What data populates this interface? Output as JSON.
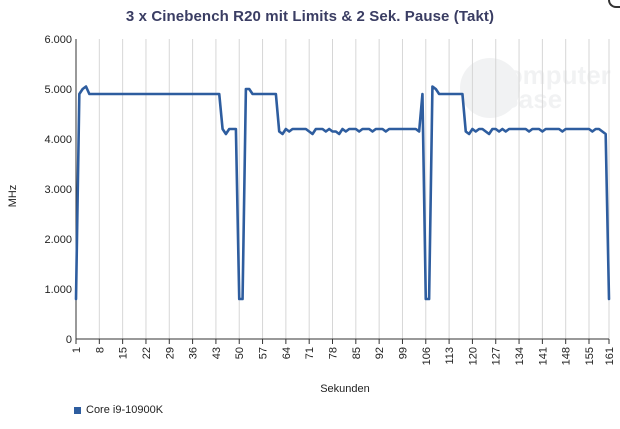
{
  "title": "3 x Cinebench R20 mit Limits & 2 Sek. Pause (Takt)",
  "watermark": {
    "line1": "Computer",
    "line2": "Base"
  },
  "chart_data": {
    "type": "line",
    "title": "3 x Cinebench R20 mit Limits & 2 Sek. Pause (Takt)",
    "xlabel": "Sekunden",
    "ylabel": "MHz",
    "xlim": [
      1,
      161
    ],
    "ylim": [
      0,
      6000
    ],
    "x_tick_labels": [
      "1",
      "8",
      "15",
      "22",
      "29",
      "36",
      "43",
      "50",
      "57",
      "64",
      "71",
      "78",
      "85",
      "92",
      "99",
      "106",
      "113",
      "120",
      "127",
      "134",
      "141",
      "148",
      "155",
      "161"
    ],
    "y_tick_labels": [
      "0",
      "1.000",
      "2.000",
      "3.000",
      "4.000",
      "5.000",
      "6.000"
    ],
    "y_ticks": [
      0,
      1000,
      2000,
      3000,
      4000,
      5000,
      6000
    ],
    "grid": {
      "x": true,
      "y": false
    },
    "legend": "bottom-left",
    "series": [
      {
        "name": "Core i9-10900K",
        "color": "#2e5d9f",
        "points": [
          [
            1,
            800
          ],
          [
            2,
            4900
          ],
          [
            3,
            5000
          ],
          [
            4,
            5050
          ],
          [
            5,
            4900
          ],
          [
            6,
            4900
          ],
          [
            10,
            4900
          ],
          [
            20,
            4900
          ],
          [
            30,
            4900
          ],
          [
            40,
            4900
          ],
          [
            44,
            4900
          ],
          [
            45,
            4200
          ],
          [
            46,
            4100
          ],
          [
            47,
            4200
          ],
          [
            48,
            4200
          ],
          [
            49,
            4200
          ],
          [
            50,
            800
          ],
          [
            51,
            800
          ],
          [
            52,
            5000
          ],
          [
            53,
            5000
          ],
          [
            54,
            4900
          ],
          [
            55,
            4900
          ],
          [
            60,
            4900
          ],
          [
            61,
            4900
          ],
          [
            62,
            4150
          ],
          [
            63,
            4100
          ],
          [
            64,
            4200
          ],
          [
            65,
            4150
          ],
          [
            66,
            4200
          ],
          [
            67,
            4200
          ],
          [
            68,
            4200
          ],
          [
            69,
            4200
          ],
          [
            70,
            4200
          ],
          [
            71,
            4150
          ],
          [
            72,
            4100
          ],
          [
            73,
            4200
          ],
          [
            74,
            4200
          ],
          [
            75,
            4200
          ],
          [
            76,
            4150
          ],
          [
            77,
            4200
          ],
          [
            78,
            4150
          ],
          [
            79,
            4150
          ],
          [
            80,
            4100
          ],
          [
            81,
            4200
          ],
          [
            82,
            4150
          ],
          [
            83,
            4200
          ],
          [
            84,
            4200
          ],
          [
            85,
            4200
          ],
          [
            86,
            4150
          ],
          [
            87,
            4200
          ],
          [
            88,
            4200
          ],
          [
            89,
            4200
          ],
          [
            90,
            4150
          ],
          [
            91,
            4200
          ],
          [
            92,
            4200
          ],
          [
            93,
            4200
          ],
          [
            94,
            4150
          ],
          [
            95,
            4200
          ],
          [
            96,
            4200
          ],
          [
            97,
            4200
          ],
          [
            98,
            4200
          ],
          [
            99,
            4200
          ],
          [
            100,
            4200
          ],
          [
            101,
            4200
          ],
          [
            102,
            4200
          ],
          [
            103,
            4200
          ],
          [
            104,
            4150
          ],
          [
            105,
            4900
          ],
          [
            106,
            800
          ],
          [
            107,
            800
          ],
          [
            108,
            5050
          ],
          [
            109,
            5000
          ],
          [
            110,
            4900
          ],
          [
            111,
            4900
          ],
          [
            115,
            4900
          ],
          [
            117,
            4900
          ],
          [
            118,
            4150
          ],
          [
            119,
            4100
          ],
          [
            120,
            4200
          ],
          [
            121,
            4150
          ],
          [
            122,
            4200
          ],
          [
            123,
            4200
          ],
          [
            124,
            4150
          ],
          [
            125,
            4100
          ],
          [
            126,
            4200
          ],
          [
            127,
            4200
          ],
          [
            128,
            4150
          ],
          [
            129,
            4200
          ],
          [
            130,
            4150
          ],
          [
            131,
            4200
          ],
          [
            132,
            4200
          ],
          [
            133,
            4200
          ],
          [
            134,
            4200
          ],
          [
            135,
            4200
          ],
          [
            136,
            4200
          ],
          [
            137,
            4150
          ],
          [
            138,
            4200
          ],
          [
            139,
            4200
          ],
          [
            140,
            4200
          ],
          [
            141,
            4150
          ],
          [
            142,
            4200
          ],
          [
            143,
            4200
          ],
          [
            144,
            4200
          ],
          [
            145,
            4200
          ],
          [
            146,
            4200
          ],
          [
            147,
            4150
          ],
          [
            148,
            4200
          ],
          [
            149,
            4200
          ],
          [
            150,
            4200
          ],
          [
            151,
            4200
          ],
          [
            152,
            4200
          ],
          [
            153,
            4200
          ],
          [
            154,
            4200
          ],
          [
            155,
            4200
          ],
          [
            156,
            4150
          ],
          [
            157,
            4200
          ],
          [
            158,
            4200
          ],
          [
            159,
            4150
          ],
          [
            160,
            4100
          ],
          [
            161,
            800
          ]
        ]
      }
    ]
  }
}
